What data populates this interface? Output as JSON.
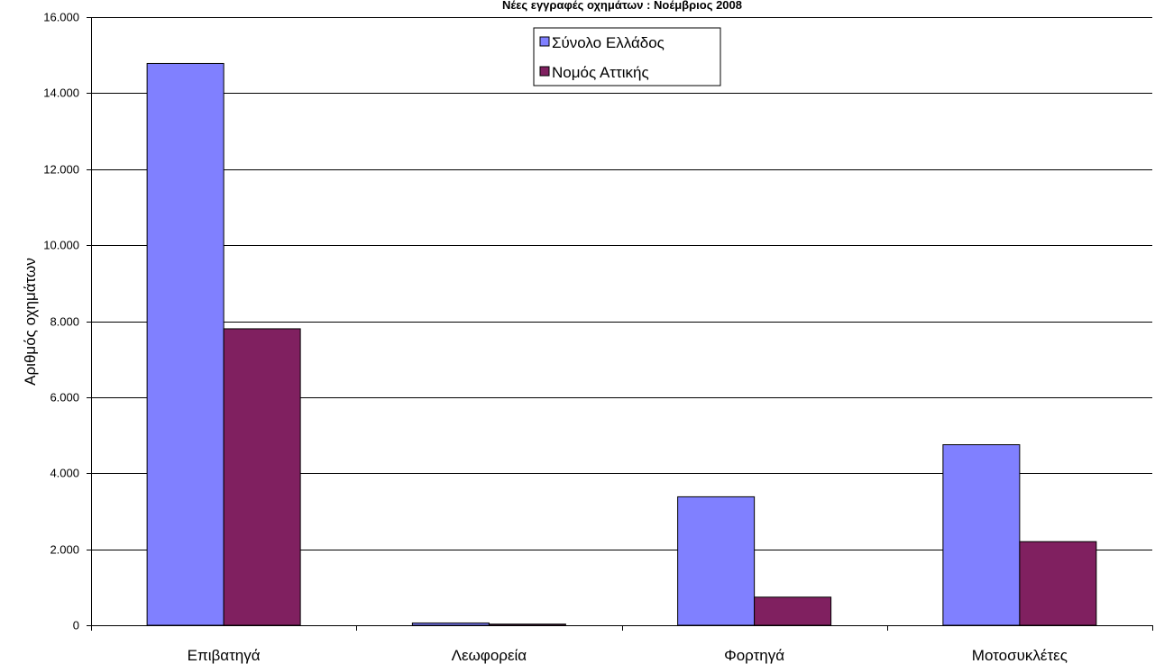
{
  "chart_data": {
    "type": "bar",
    "title": "Νέες εγγραφές οχημάτων : Νοέμβριος 2008",
    "xlabel": "",
    "ylabel": "Αριθμός οχημάτων",
    "categories": [
      "Επιβατηγά",
      "Λεωφορεία",
      "Φορτηγά",
      "Μοτοσυκλέτες"
    ],
    "series": [
      {
        "name": "Σύνολο Ελλάδος",
        "values": [
          14780,
          60,
          3380,
          4750
        ],
        "color": "#8080ff"
      },
      {
        "name": "Νομός Αττικής",
        "values": [
          7800,
          30,
          740,
          2200
        ],
        "color": "#802060"
      }
    ],
    "ylim": [
      0,
      16000
    ],
    "yticks": [
      0,
      2000,
      4000,
      6000,
      8000,
      10000,
      12000,
      14000,
      16000
    ],
    "ytick_labels": [
      "0",
      "2.000",
      "4.000",
      "6.000",
      "8.000",
      "10.000",
      "12.000",
      "14.000",
      "16.000"
    ],
    "grid": true,
    "legend_position": "top-center"
  }
}
